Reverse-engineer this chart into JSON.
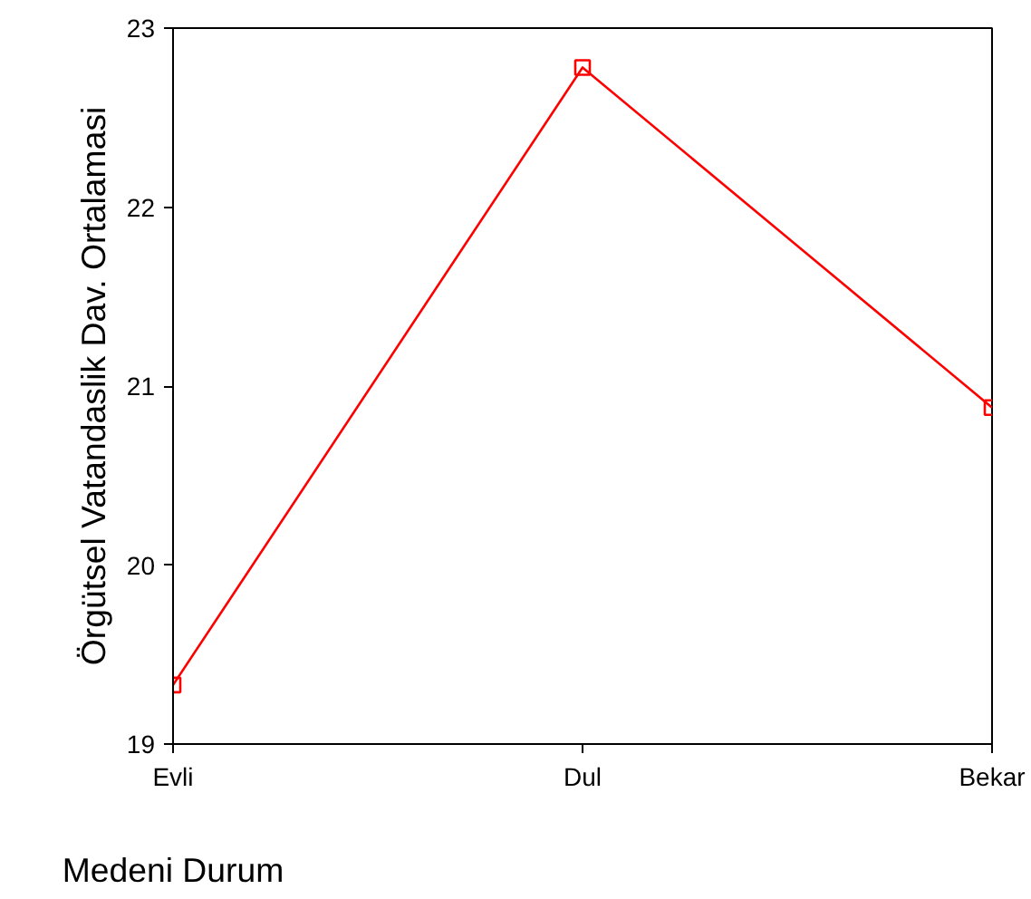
{
  "chart_data": {
    "type": "line",
    "xlabel": "Medeni Durum",
    "ylabel": "Örgütsel Vatandaslik Dav. Ortalamasi",
    "categories": [
      "Evli",
      "Dul",
      "Bekar"
    ],
    "series": [
      {
        "color": "#ff0000",
        "values": [
          19.33,
          22.78,
          20.88
        ]
      }
    ],
    "ylim": [
      19,
      23
    ],
    "yticks": [
      19,
      20,
      21,
      22,
      23
    ],
    "grid": false,
    "marker": "square",
    "line_style": "solid"
  }
}
